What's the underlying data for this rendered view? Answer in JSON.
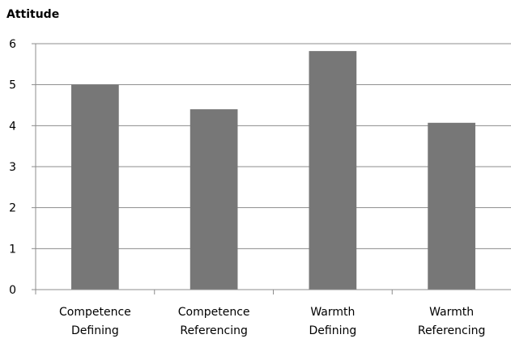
{
  "chart_data": {
    "type": "bar",
    "title": "",
    "xlabel": "",
    "ylabel": "Attitude",
    "categories": [
      [
        "Competence",
        "Defining"
      ],
      [
        "Competence",
        "Referencing"
      ],
      [
        "Warmth",
        "Defining"
      ],
      [
        "Warmth",
        "Referencing"
      ]
    ],
    "values": [
      5.0,
      4.4,
      5.82,
      4.07
    ],
    "ylim": [
      0,
      6
    ],
    "yticks": [
      0,
      1,
      2,
      3,
      4,
      5,
      6
    ],
    "grid": true,
    "legend": "none",
    "bar_color": "#777777"
  }
}
